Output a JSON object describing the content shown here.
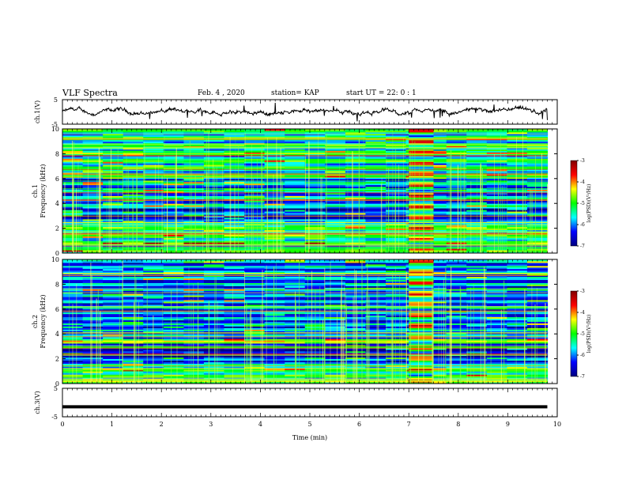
{
  "header": {
    "title": "VLF Spectra",
    "date": "Feb. 4 , 2020",
    "station": "station= KAP",
    "start": "start UT =  22: 0  : 1"
  },
  "chart_data": [
    {
      "type": "line",
      "name": "ch1-waveform",
      "ylabel": "ch.1(V)",
      "ylim": [
        -5,
        5
      ],
      "yticks": [
        "5",
        "-5"
      ],
      "xlim": [
        0,
        10
      ]
    },
    {
      "type": "heatmap",
      "name": "ch1-spectrogram",
      "ylabel": "ch.1\nFrequency (kHz)",
      "ylabel_line1": "ch.1",
      "ylabel_line2": "Frequency (kHz)",
      "ylim": [
        0,
        10
      ],
      "yticks": [
        "0",
        "2",
        "4",
        "6",
        "8",
        "10"
      ],
      "xlim": [
        0,
        9.8
      ],
      "burst_interval_min": [
        7.0,
        7.5
      ],
      "colorbar": {
        "label": "log(PSD)(V²/Hz)",
        "range": [
          -7,
          -3
        ],
        "ticks": [
          "-3",
          "-4",
          "-5",
          "-6",
          "-7"
        ]
      }
    },
    {
      "type": "heatmap",
      "name": "ch2-spectrogram",
      "ylabel_line1": "ch.2",
      "ylabel_line2": "Frequency (kHz)",
      "ylim": [
        0,
        10
      ],
      "yticks": [
        "0",
        "2",
        "4",
        "6",
        "8",
        "10"
      ],
      "xlim": [
        0,
        9.8
      ],
      "burst_interval_min": [
        7.0,
        7.5
      ],
      "colorbar": {
        "label": "log(PSD)(V²/Hz)",
        "range": [
          -7,
          -3
        ],
        "ticks": [
          "-3",
          "-4",
          "-5",
          "-6",
          "-7"
        ]
      }
    },
    {
      "type": "line",
      "name": "ch3-waveform",
      "ylabel": "ch.3(V)",
      "ylim": [
        -5,
        5
      ],
      "yticks": [
        "5",
        "-5"
      ],
      "constant_value": -1.5
    }
  ],
  "xaxis": {
    "label": "Time (min)",
    "range": [
      0,
      10
    ],
    "ticks": [
      "0",
      "1",
      "2",
      "3",
      "4",
      "5",
      "6",
      "7",
      "8",
      "9",
      "10"
    ]
  },
  "colors": {
    "jet": [
      "#000080",
      "#0000ff",
      "#00ffff",
      "#00ff00",
      "#ffff00",
      "#ff0000",
      "#800000"
    ]
  }
}
